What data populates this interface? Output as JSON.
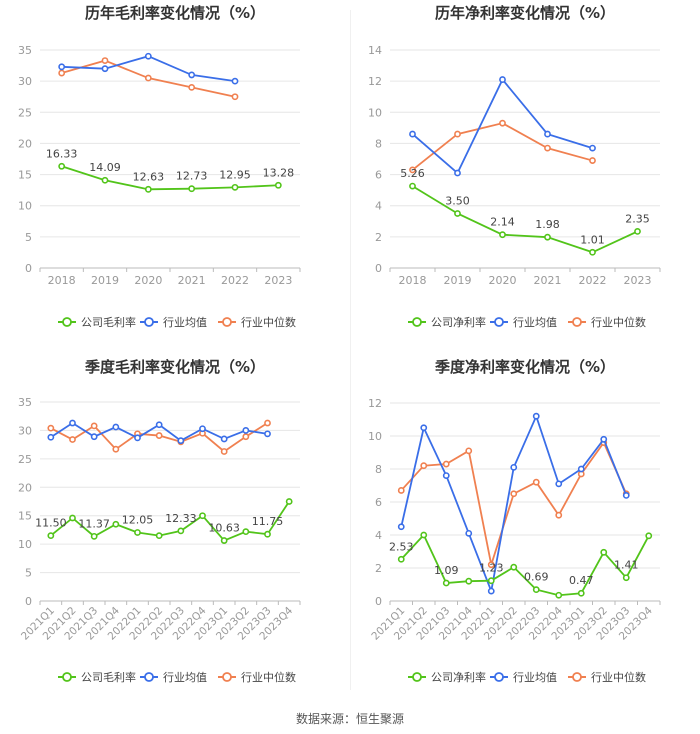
{
  "source": "数据来源：恒生聚源",
  "colors": {
    "company": "#52c41a",
    "average": "#3a6ee8",
    "median": "#f08050",
    "axis": "#999999",
    "grid": "#e6e6e6"
  },
  "chart_data": [
    {
      "type": "line",
      "title": "历年毛利率变化情况（%）",
      "categories": [
        "2018",
        "2019",
        "2020",
        "2021",
        "2022",
        "2023"
      ],
      "ylim": [
        0,
        35
      ],
      "yticks": [
        0,
        5,
        10,
        15,
        20,
        25,
        30,
        35
      ],
      "series": [
        {
          "name": "公司毛利率",
          "role": "company",
          "values": [
            16.33,
            14.09,
            12.63,
            12.73,
            12.95,
            13.28
          ],
          "labels": [
            "16.33",
            "14.09",
            "12.63",
            "12.73",
            "12.95",
            "13.28"
          ]
        },
        {
          "name": "行业均值",
          "role": "average",
          "values": [
            32.3,
            32.0,
            34.0,
            31.0,
            30.0,
            null
          ]
        },
        {
          "name": "行业中位数",
          "role": "median",
          "values": [
            31.3,
            33.3,
            30.5,
            29.0,
            27.5,
            null
          ]
        }
      ]
    },
    {
      "type": "line",
      "title": "历年净利率变化情况（%）",
      "categories": [
        "2018",
        "2019",
        "2020",
        "2021",
        "2022",
        "2023"
      ],
      "ylim": [
        0,
        14
      ],
      "yticks": [
        0,
        2,
        4,
        6,
        8,
        10,
        12,
        14
      ],
      "series": [
        {
          "name": "公司净利率",
          "role": "company",
          "values": [
            5.26,
            3.5,
            2.14,
            1.98,
            1.01,
            2.35
          ],
          "labels": [
            "5.26",
            "3.50",
            "2.14",
            "1.98",
            "1.01",
            "2.35"
          ]
        },
        {
          "name": "行业均值",
          "role": "average",
          "values": [
            8.6,
            6.1,
            12.1,
            8.6,
            7.7,
            null
          ]
        },
        {
          "name": "行业中位数",
          "role": "median",
          "values": [
            6.3,
            8.6,
            9.3,
            7.7,
            6.9,
            null
          ]
        }
      ]
    },
    {
      "type": "line",
      "title": "季度毛利率变化情况（%）",
      "categories": [
        "2021Q1",
        "2021Q2",
        "2021Q3",
        "2021Q4",
        "2022Q1",
        "2022Q2",
        "2022Q3",
        "2022Q4",
        "2023Q1",
        "2023Q2",
        "2023Q3",
        "2023Q4"
      ],
      "ylim": [
        0,
        35
      ],
      "yticks": [
        0,
        5,
        10,
        15,
        20,
        25,
        30,
        35
      ],
      "series": [
        {
          "name": "公司毛利率",
          "role": "company",
          "values": [
            11.5,
            14.6,
            11.37,
            13.5,
            12.05,
            11.5,
            12.33,
            15.0,
            10.63,
            12.2,
            11.75,
            17.5
          ],
          "labels": [
            "11.50",
            "",
            "11.37",
            "",
            "12.05",
            "",
            "12.33",
            "",
            "10.63",
            "",
            "11.75",
            ""
          ]
        },
        {
          "name": "行业均值",
          "role": "average",
          "values": [
            28.8,
            31.3,
            28.9,
            30.6,
            28.7,
            31.0,
            28.2,
            30.3,
            28.5,
            30.0,
            29.4,
            null
          ]
        },
        {
          "name": "行业中位数",
          "role": "median",
          "values": [
            30.4,
            28.4,
            30.8,
            26.7,
            29.4,
            29.1,
            28.0,
            29.5,
            26.3,
            28.9,
            31.3,
            null
          ]
        }
      ]
    },
    {
      "type": "line",
      "title": "季度净利率变化情况（%）",
      "categories": [
        "2021Q1",
        "2021Q2",
        "2021Q3",
        "2021Q4",
        "2022Q1",
        "2022Q2",
        "2022Q3",
        "2022Q4",
        "2023Q1",
        "2023Q2",
        "2023Q3",
        "2023Q4"
      ],
      "ylim": [
        0,
        12
      ],
      "yticks": [
        0,
        2,
        4,
        6,
        8,
        10,
        12
      ],
      "series": [
        {
          "name": "公司净利率",
          "role": "company",
          "values": [
            2.53,
            4.0,
            1.09,
            1.2,
            1.23,
            2.05,
            0.69,
            0.35,
            0.47,
            2.95,
            1.41,
            3.95
          ],
          "labels": [
            "2.53",
            "",
            "1.09",
            "",
            "1.23",
            "",
            "0.69",
            "",
            "0.47",
            "",
            "1.41",
            ""
          ]
        },
        {
          "name": "行业均值",
          "role": "average",
          "values": [
            4.5,
            10.5,
            7.6,
            4.1,
            0.6,
            8.1,
            11.2,
            7.1,
            8.0,
            9.8,
            6.4,
            null
          ]
        },
        {
          "name": "行业中位数",
          "role": "median",
          "values": [
            6.7,
            8.2,
            8.3,
            9.1,
            2.2,
            6.5,
            7.2,
            5.2,
            7.7,
            9.6,
            6.5,
            null
          ]
        }
      ]
    }
  ]
}
